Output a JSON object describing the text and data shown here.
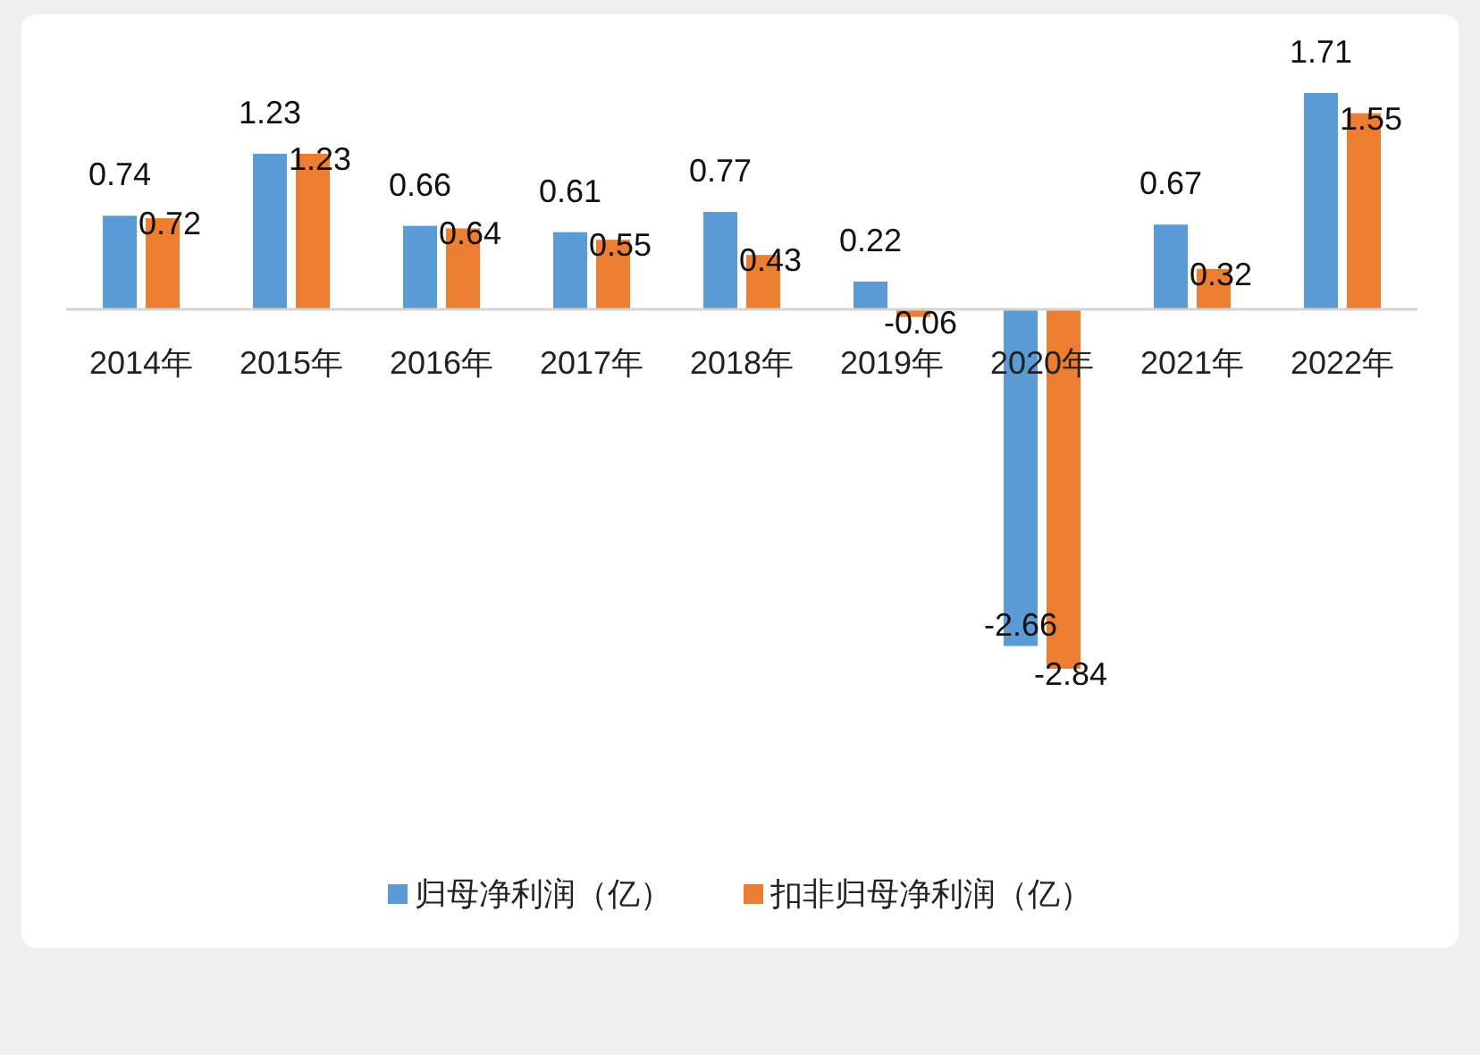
{
  "chart_data": {
    "type": "bar",
    "categories": [
      "2014年",
      "2015年",
      "2016年",
      "2017年",
      "2018年",
      "2019年",
      "2020年",
      "2021年",
      "2022年"
    ],
    "series": [
      {
        "name": "归母净利润（亿）",
        "color": "#5b9bd5",
        "values": [
          0.74,
          1.23,
          0.66,
          0.61,
          0.77,
          0.22,
          -2.66,
          0.67,
          1.71
        ]
      },
      {
        "name": "扣非归母净利润（亿）",
        "color": "#ed7d31",
        "values": [
          0.72,
          1.23,
          0.64,
          0.55,
          0.43,
          -0.06,
          -2.84,
          0.32,
          1.55
        ]
      }
    ],
    "data_labels": true,
    "legend": "bottom"
  }
}
